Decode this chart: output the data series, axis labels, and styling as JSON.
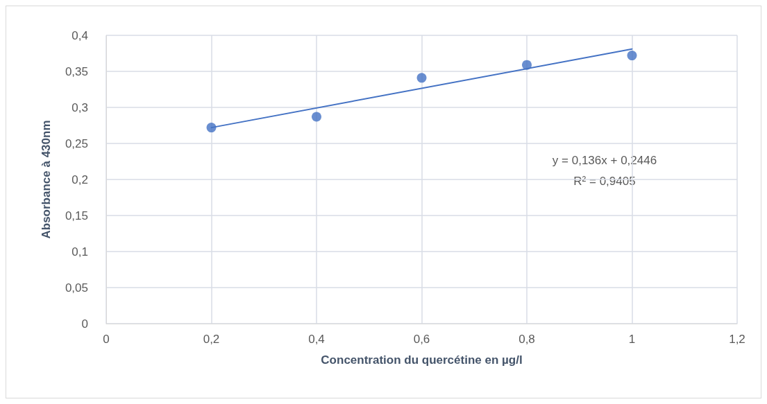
{
  "chart_data": {
    "type": "scatter",
    "xlabel": "Concentration du quercétine en µg/l",
    "ylabel": "Absorbance à 430nm",
    "annotations": [
      "y = 0,136x + 0,2446",
      "R² = 0,9405"
    ],
    "series": [
      {
        "color": "#4472c4",
        "marker": "circle",
        "x": [
          0.2,
          0.4,
          0.6,
          0.8,
          1.0
        ],
        "values": [
          0.272,
          0.287,
          0.341,
          0.359,
          0.372
        ]
      },
      {
        "type": "line",
        "color": "#4472c4",
        "marker": "none",
        "line_style": "solid",
        "x": [
          0.2,
          1.0
        ],
        "values": [
          0.272,
          0.381
        ]
      }
    ],
    "xlim": [
      0,
      1.2
    ],
    "xticks": [
      0,
      {
        "value": 0.2,
        "label": "0,2"
      },
      {
        "value": 0.4,
        "label": "0,4"
      },
      {
        "value": 0.6,
        "label": "0,6"
      },
      {
        "value": 0.8,
        "label": "0,8"
      },
      1,
      {
        "value": 1.2,
        "label": "1,2"
      }
    ],
    "ylim": [
      0,
      0.4
    ],
    "yticks": [
      0,
      {
        "value": 0.05,
        "label": "0,05"
      },
      {
        "value": 0.1,
        "label": "0,1"
      },
      {
        "value": 0.15,
        "label": "0,15"
      },
      {
        "value": 0.2,
        "label": "0,2"
      },
      {
        "value": 0.25,
        "label": "0,25"
      },
      {
        "value": 0.3,
        "label": "0,3"
      },
      {
        "value": 0.35,
        "label": "0,35"
      },
      {
        "value": 0.4,
        "label": "0,4"
      }
    ],
    "grid": true
  }
}
